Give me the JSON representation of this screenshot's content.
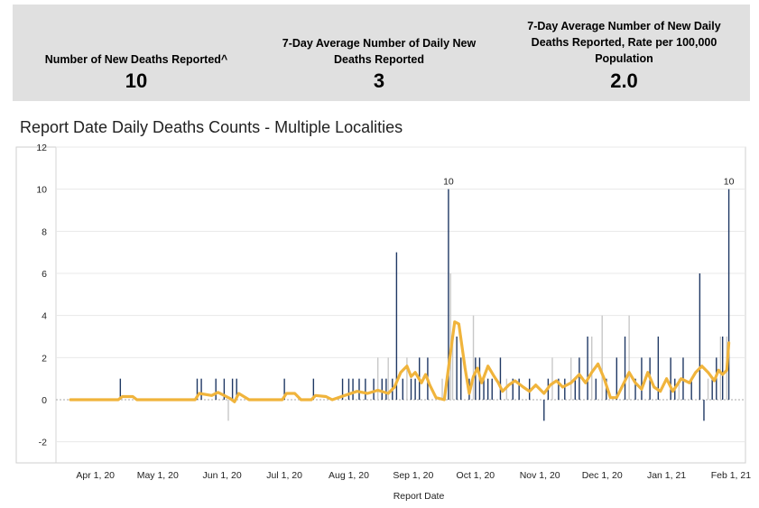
{
  "kpis": [
    {
      "label": "Number of New Deaths Reported^",
      "value": "10"
    },
    {
      "label": "7-Day Average Number of Daily New Deaths Reported",
      "value": "3"
    },
    {
      "label": "7-Day Average Number of New Daily Deaths Reported, Rate per 100,000 Population",
      "value": "2.0"
    }
  ],
  "chart_title": "Report Date Daily Deaths Counts - Multiple Localities",
  "colors": {
    "bar": "#1f3864",
    "bar_secondary": "#c8c8c8",
    "line": "#f0b43c",
    "grid": "#e8e8e8",
    "zero_line": "#aaaaaa",
    "kpi_background": "#e0e0e0"
  },
  "chart_data": {
    "type": "bar",
    "title": "Report Date Daily Deaths Counts - Multiple Localities",
    "xlabel": "Report Date",
    "ylabel": "",
    "ylim": [
      -3,
      12
    ],
    "yticks": [
      -2,
      0,
      2,
      4,
      6,
      8,
      10,
      12
    ],
    "x_start": "2020-03-13",
    "x_end": "2021-02-08",
    "x_ticks": [
      {
        "date": "2020-04-01",
        "label": "Apr 1, 20"
      },
      {
        "date": "2020-05-01",
        "label": "May 1, 20"
      },
      {
        "date": "2020-06-01",
        "label": "Jun 1, 20"
      },
      {
        "date": "2020-07-01",
        "label": "Jul 1, 20"
      },
      {
        "date": "2020-08-01",
        "label": "Aug 1, 20"
      },
      {
        "date": "2020-09-01",
        "label": "Sep 1, 20"
      },
      {
        "date": "2020-10-01",
        "label": "Oct 1, 20"
      },
      {
        "date": "2020-11-01",
        "label": "Nov 1, 20"
      },
      {
        "date": "2020-12-01",
        "label": "Dec 1, 20"
      },
      {
        "date": "2021-01-01",
        "label": "Jan 1, 21"
      },
      {
        "date": "2021-02-01",
        "label": "Feb 1, 21"
      }
    ],
    "annotations": [
      {
        "date": "2020-09-18",
        "value": 10,
        "text": "10"
      },
      {
        "date": "2021-01-31",
        "value": 10,
        "text": "10"
      }
    ],
    "series": [
      {
        "kind": "bar",
        "color": "#1f3864",
        "points": [
          [
            "2020-04-13",
            1
          ],
          [
            "2020-05-20",
            1
          ],
          [
            "2020-05-22",
            1
          ],
          [
            "2020-05-29",
            1
          ],
          [
            "2020-06-02",
            1
          ],
          [
            "2020-06-06",
            1
          ],
          [
            "2020-06-08",
            1
          ],
          [
            "2020-07-01",
            1
          ],
          [
            "2020-07-15",
            1
          ],
          [
            "2020-07-29",
            1
          ],
          [
            "2020-08-01",
            1
          ],
          [
            "2020-08-03",
            1
          ],
          [
            "2020-08-06",
            1
          ],
          [
            "2020-08-09",
            1
          ],
          [
            "2020-08-13",
            1
          ],
          [
            "2020-08-17",
            1
          ],
          [
            "2020-08-19",
            1
          ],
          [
            "2020-08-22",
            1
          ],
          [
            "2020-08-24",
            7
          ],
          [
            "2020-08-27",
            1
          ],
          [
            "2020-08-31",
            1
          ],
          [
            "2020-09-02",
            1
          ],
          [
            "2020-09-04",
            2
          ],
          [
            "2020-09-08",
            2
          ],
          [
            "2020-09-18",
            10
          ],
          [
            "2020-09-22",
            3
          ],
          [
            "2020-09-24",
            2
          ],
          [
            "2020-09-28",
            1
          ],
          [
            "2020-10-01",
            2
          ],
          [
            "2020-10-03",
            2
          ],
          [
            "2020-10-05",
            1
          ],
          [
            "2020-10-07",
            1
          ],
          [
            "2020-10-09",
            1
          ],
          [
            "2020-10-13",
            2
          ],
          [
            "2020-10-19",
            1
          ],
          [
            "2020-10-22",
            1
          ],
          [
            "2020-10-27",
            1
          ],
          [
            "2020-11-03",
            -1
          ],
          [
            "2020-11-05",
            1
          ],
          [
            "2020-11-10",
            1
          ],
          [
            "2020-11-13",
            1
          ],
          [
            "2020-11-18",
            1
          ],
          [
            "2020-11-20",
            2
          ],
          [
            "2020-11-24",
            3
          ],
          [
            "2020-11-28",
            1
          ],
          [
            "2020-12-03",
            1
          ],
          [
            "2020-12-08",
            2
          ],
          [
            "2020-12-12",
            3
          ],
          [
            "2020-12-17",
            1
          ],
          [
            "2020-12-20",
            2
          ],
          [
            "2020-12-24",
            2
          ],
          [
            "2020-12-28",
            3
          ],
          [
            "2021-01-03",
            2
          ],
          [
            "2021-01-05",
            1
          ],
          [
            "2021-01-09",
            2
          ],
          [
            "2021-01-13",
            1
          ],
          [
            "2021-01-17",
            6
          ],
          [
            "2021-01-19",
            -1
          ],
          [
            "2021-01-23",
            1
          ],
          [
            "2021-01-25",
            2
          ],
          [
            "2021-01-28",
            3
          ],
          [
            "2021-01-31",
            10
          ]
        ]
      },
      {
        "kind": "bar",
        "color": "#c8c8c8",
        "points": [
          [
            "2020-06-04",
            -1
          ],
          [
            "2020-08-15",
            2
          ],
          [
            "2020-08-20",
            2
          ],
          [
            "2020-08-29",
            2
          ],
          [
            "2020-09-15",
            1
          ],
          [
            "2020-09-19",
            6
          ],
          [
            "2020-09-20",
            3
          ],
          [
            "2020-09-30",
            4
          ],
          [
            "2020-10-16",
            1
          ],
          [
            "2020-11-07",
            2
          ],
          [
            "2020-11-16",
            2
          ],
          [
            "2020-11-26",
            3
          ],
          [
            "2020-12-01",
            4
          ],
          [
            "2020-12-14",
            4
          ],
          [
            "2021-01-07",
            1
          ],
          [
            "2021-01-21",
            1
          ],
          [
            "2021-01-27",
            3
          ],
          [
            "2021-01-30",
            3
          ]
        ]
      },
      {
        "kind": "line",
        "name": "",
        "color": "#f0b43c",
        "points": [
          [
            "2020-03-20",
            0
          ],
          [
            "2020-04-12",
            0
          ],
          [
            "2020-04-14",
            0.15
          ],
          [
            "2020-04-19",
            0.15
          ],
          [
            "2020-04-21",
            0
          ],
          [
            "2020-05-19",
            0
          ],
          [
            "2020-05-21",
            0.3
          ],
          [
            "2020-05-27",
            0.2
          ],
          [
            "2020-05-30",
            0.35
          ],
          [
            "2020-06-05",
            0.05
          ],
          [
            "2020-06-07",
            -0.1
          ],
          [
            "2020-06-09",
            0.3
          ],
          [
            "2020-06-14",
            0
          ],
          [
            "2020-06-30",
            0
          ],
          [
            "2020-07-02",
            0.3
          ],
          [
            "2020-07-06",
            0.3
          ],
          [
            "2020-07-09",
            0
          ],
          [
            "2020-07-14",
            0
          ],
          [
            "2020-07-16",
            0.2
          ],
          [
            "2020-07-21",
            0.15
          ],
          [
            "2020-07-24",
            0
          ],
          [
            "2020-07-30",
            0.2
          ],
          [
            "2020-08-05",
            0.4
          ],
          [
            "2020-08-10",
            0.3
          ],
          [
            "2020-08-15",
            0.45
          ],
          [
            "2020-08-20",
            0.3
          ],
          [
            "2020-08-23",
            0.6
          ],
          [
            "2020-08-26",
            1.3
          ],
          [
            "2020-08-29",
            1.6
          ],
          [
            "2020-08-31",
            1.1
          ],
          [
            "2020-09-02",
            1.3
          ],
          [
            "2020-09-05",
            0.8
          ],
          [
            "2020-09-07",
            1.2
          ],
          [
            "2020-09-09",
            0.7
          ],
          [
            "2020-09-12",
            0.1
          ],
          [
            "2020-09-16",
            0
          ],
          [
            "2020-09-18",
            1.5
          ],
          [
            "2020-09-21",
            3.7
          ],
          [
            "2020-09-23",
            3.6
          ],
          [
            "2020-09-26",
            1.5
          ],
          [
            "2020-09-28",
            0.3
          ],
          [
            "2020-09-30",
            1.1
          ],
          [
            "2020-10-02",
            1.5
          ],
          [
            "2020-10-04",
            0.8
          ],
          [
            "2020-10-07",
            1.6
          ],
          [
            "2020-10-10",
            1.1
          ],
          [
            "2020-10-12",
            0.8
          ],
          [
            "2020-10-14",
            0.4
          ],
          [
            "2020-10-17",
            0.7
          ],
          [
            "2020-10-20",
            0.9
          ],
          [
            "2020-10-24",
            0.6
          ],
          [
            "2020-10-27",
            0.4
          ],
          [
            "2020-10-30",
            0.7
          ],
          [
            "2020-11-03",
            0.3
          ],
          [
            "2020-11-06",
            0.7
          ],
          [
            "2020-11-09",
            0.9
          ],
          [
            "2020-11-12",
            0.6
          ],
          [
            "2020-11-16",
            0.8
          ],
          [
            "2020-11-20",
            1.2
          ],
          [
            "2020-11-23",
            0.8
          ],
          [
            "2020-11-26",
            1.3
          ],
          [
            "2020-11-29",
            1.7
          ],
          [
            "2020-12-02",
            1.0
          ],
          [
            "2020-12-05",
            0.1
          ],
          [
            "2020-12-08",
            0.1
          ],
          [
            "2020-12-11",
            0.7
          ],
          [
            "2020-12-14",
            1.3
          ],
          [
            "2020-12-17",
            0.8
          ],
          [
            "2020-12-20",
            0.5
          ],
          [
            "2020-12-23",
            1.3
          ],
          [
            "2020-12-26",
            0.6
          ],
          [
            "2020-12-29",
            0.4
          ],
          [
            "2021-01-01",
            1.0
          ],
          [
            "2021-01-04",
            0.4
          ],
          [
            "2021-01-08",
            1.0
          ],
          [
            "2021-01-12",
            0.8
          ],
          [
            "2021-01-15",
            1.3
          ],
          [
            "2021-01-18",
            1.6
          ],
          [
            "2021-01-21",
            1.3
          ],
          [
            "2021-01-24",
            0.9
          ],
          [
            "2021-01-26",
            1.4
          ],
          [
            "2021-01-28",
            1.2
          ],
          [
            "2021-01-30",
            1.4
          ],
          [
            "2021-01-31",
            2.7
          ]
        ]
      }
    ]
  }
}
